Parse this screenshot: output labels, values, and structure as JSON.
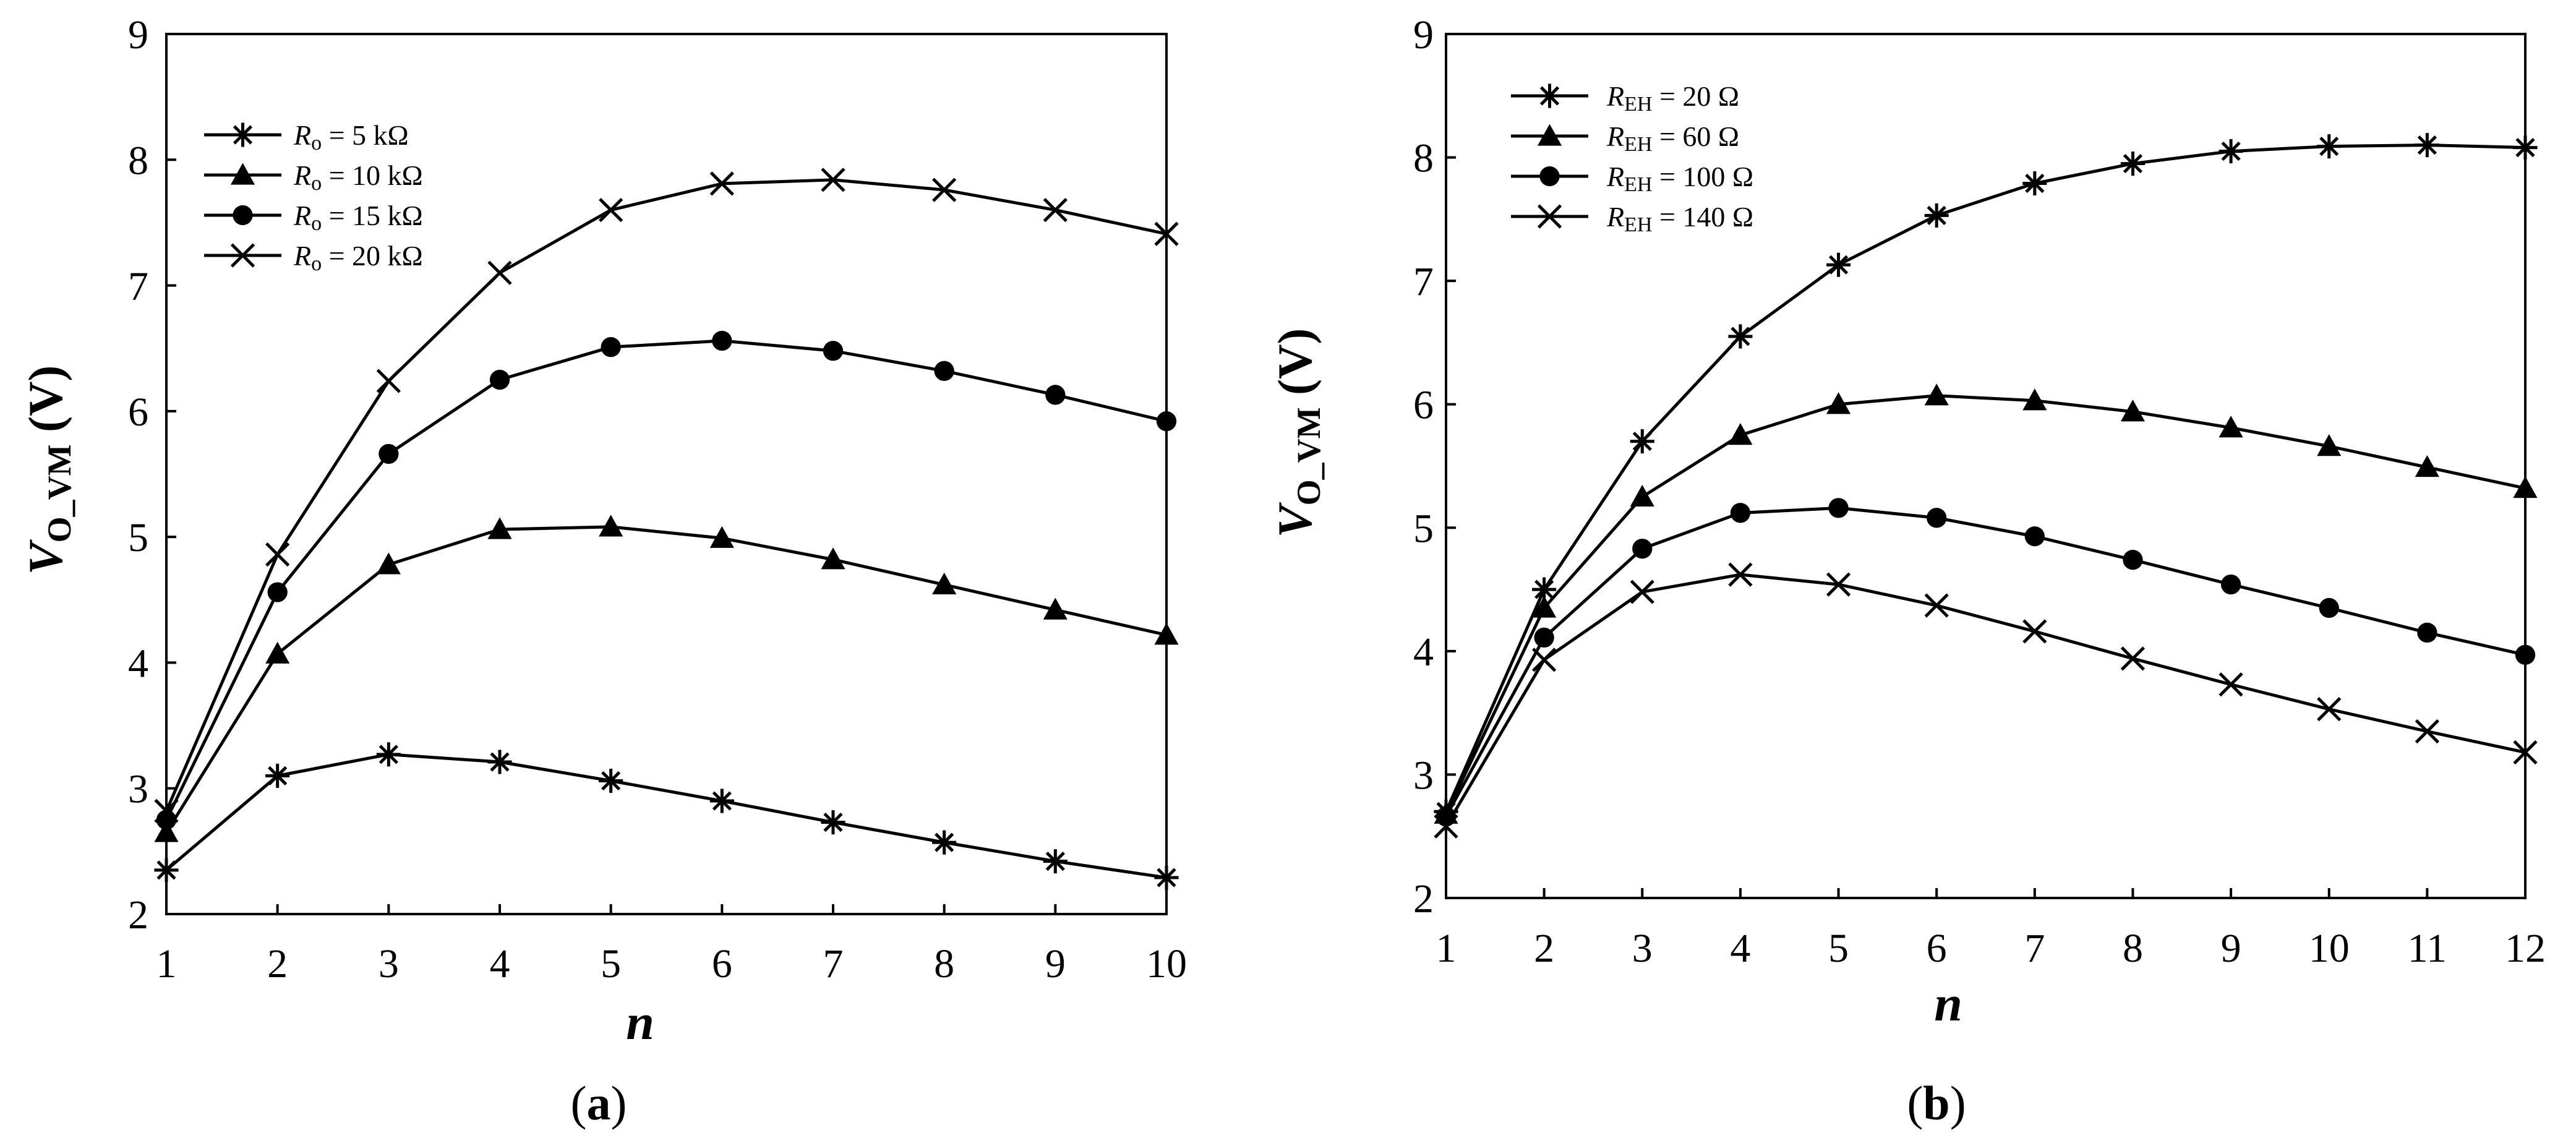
{
  "chart_data": [
    {
      "type": "line",
      "panel_label": "a",
      "ylabel": "V_O_VM (V)",
      "ylabel_main": "V",
      "ylabel_sub": "O_VM",
      "ylabel_unit": " (V)",
      "xlabel": "n",
      "xlim": [
        1,
        10
      ],
      "ylim": [
        2,
        9
      ],
      "xticks": [
        "1",
        "2",
        "3",
        "4",
        "5",
        "6",
        "7",
        "8",
        "9",
        "10"
      ],
      "yticks": [
        "2",
        "3",
        "4",
        "5",
        "6",
        "7",
        "8",
        "9"
      ],
      "x": [
        1,
        2,
        3,
        4,
        5,
        6,
        7,
        8,
        9,
        10
      ],
      "legend_position": "top-left",
      "series": [
        {
          "name": "Ro = 5 kΩ",
          "sym": "R",
          "sub": "o",
          "rest": " = 5 kΩ",
          "marker": "asterisk",
          "values": [
            2.35,
            3.1,
            3.27,
            3.21,
            3.06,
            2.9,
            2.73,
            2.57,
            2.42,
            2.29
          ]
        },
        {
          "name": "Ro = 10 kΩ",
          "sym": "R",
          "sub": "o",
          "rest": " = 10 kΩ",
          "marker": "triangle",
          "values": [
            2.65,
            4.07,
            4.78,
            5.06,
            5.08,
            4.99,
            4.82,
            4.62,
            4.42,
            4.22
          ]
        },
        {
          "name": "Ro = 15 kΩ",
          "sym": "R",
          "sub": "o",
          "rest": " = 15 kΩ",
          "marker": "circle",
          "values": [
            2.75,
            4.56,
            5.66,
            6.25,
            6.51,
            6.56,
            6.48,
            6.32,
            6.13,
            5.92
          ]
        },
        {
          "name": "Ro = 20 kΩ",
          "sym": "R",
          "sub": "o",
          "rest": " = 20 kΩ",
          "marker": "x",
          "values": [
            2.82,
            4.86,
            6.24,
            7.1,
            7.6,
            7.81,
            7.84,
            7.76,
            7.6,
            7.41
          ]
        }
      ]
    },
    {
      "type": "line",
      "panel_label": "b",
      "ylabel": "V_O_VM (V)",
      "ylabel_main": "V",
      "ylabel_sub": "O_VM",
      "ylabel_unit": " (V)",
      "xlabel": "n",
      "xlim": [
        1,
        12
      ],
      "ylim": [
        2,
        9
      ],
      "xticks": [
        "1",
        "2",
        "3",
        "4",
        "5",
        "6",
        "7",
        "8",
        "9",
        "10",
        "11",
        "12"
      ],
      "yticks": [
        "2",
        "3",
        "4",
        "5",
        "6",
        "7",
        "8",
        "9"
      ],
      "x": [
        1,
        2,
        3,
        4,
        5,
        6,
        7,
        8,
        9,
        10,
        11,
        12
      ],
      "legend_position": "top-left",
      "series": [
        {
          "name": "REH = 20 Ω",
          "sym": "R",
          "sub": "EH",
          "rest": " = 20 Ω",
          "marker": "asterisk",
          "values": [
            2.7,
            4.5,
            5.7,
            6.55,
            7.13,
            7.53,
            7.79,
            7.95,
            8.05,
            8.09,
            8.1,
            8.08
          ]
        },
        {
          "name": "REH = 60 Ω",
          "sym": "R",
          "sub": "EH",
          "rest": " = 60 Ω",
          "marker": "triangle",
          "values": [
            2.68,
            4.35,
            5.25,
            5.75,
            6.0,
            6.07,
            6.03,
            5.94,
            5.81,
            5.66,
            5.49,
            5.32
          ]
        },
        {
          "name": "REH = 100 Ω",
          "sym": "R",
          "sub": "EH",
          "rest": " = 100 Ω",
          "marker": "circle",
          "values": [
            2.66,
            4.11,
            4.83,
            5.12,
            5.16,
            5.08,
            4.93,
            4.74,
            4.54,
            4.35,
            4.15,
            3.97
          ]
        },
        {
          "name": "REH = 140 Ω",
          "sym": "R",
          "sub": "EH",
          "rest": " = 140 Ω",
          "marker": "x",
          "values": [
            2.58,
            3.93,
            4.48,
            4.62,
            4.54,
            4.37,
            4.16,
            3.94,
            3.73,
            3.53,
            3.35,
            3.18
          ]
        }
      ]
    }
  ]
}
